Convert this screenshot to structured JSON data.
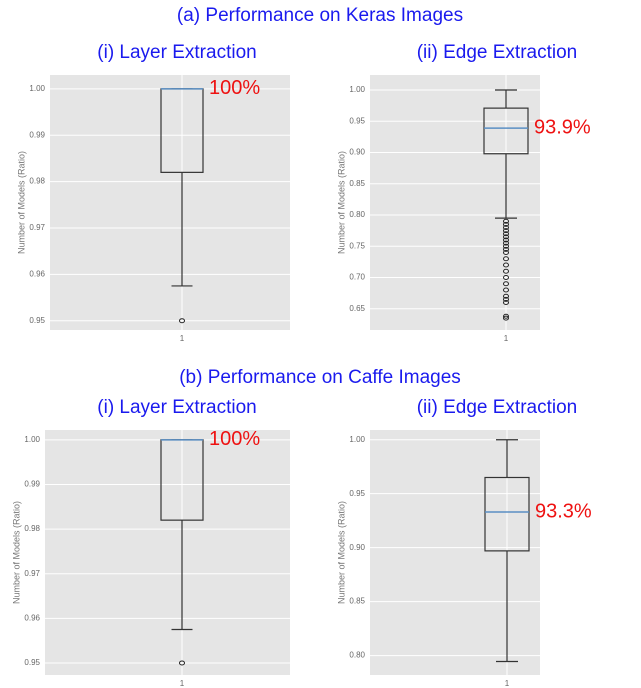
{
  "headings": [
    "(a) Performance on Keras Images",
    "(b) Performance on Caffe Images"
  ],
  "chart_data": [
    {
      "type": "box",
      "title": "(i) Layer Extraction",
      "ylabel": "Number of Models (Ratio)",
      "categories": [
        "1"
      ],
      "ylim": [
        0.948,
        1.003
      ],
      "yticks": [
        0.95,
        0.96,
        0.97,
        0.98,
        0.99,
        {
          "value": 1,
          "label": "1.00"
        }
      ],
      "grid": true,
      "box_color": "#333333",
      "median_color": "#5b8fc4",
      "box": {
        "whislo": 0.9575,
        "q1": 0.982,
        "med": 1,
        "q3": 1,
        "whishi": 1,
        "fliers": [
          0.95
        ]
      },
      "annotation": "100%"
    },
    {
      "type": "box",
      "title": "(ii) Edge Extraction",
      "ylabel": "Number of Models (Ratio)",
      "categories": [
        "1"
      ],
      "ylim": [
        0.616,
        1.024
      ],
      "yticks": [
        0.65,
        {
          "value": 0.7,
          "label": "0.70"
        },
        0.75,
        {
          "value": 0.8,
          "label": "0.80"
        },
        0.85,
        {
          "value": 0.9,
          "label": "0.90"
        },
        0.95,
        {
          "value": 1,
          "label": "1.00"
        }
      ],
      "grid": true,
      "box_color": "#333333",
      "median_color": "#5b8fc4",
      "box": {
        "whislo": 0.795,
        "q1": 0.898,
        "med": 0.939,
        "q3": 0.971,
        "whishi": 1,
        "fliers": [
          0.79,
          0.785,
          0.78,
          0.775,
          0.77,
          0.765,
          0.76,
          0.755,
          0.75,
          0.745,
          0.74,
          0.73,
          0.72,
          0.71,
          0.7,
          0.69,
          0.68,
          0.67,
          0.665,
          0.66,
          0.638,
          0.635
        ]
      },
      "annotation": "93.9%"
    },
    {
      "type": "box",
      "title": "(i) Layer Extraction",
      "ylabel": "Number of Models (Ratio)",
      "categories": [
        "1"
      ],
      "ylim": [
        0.9473,
        1.0022
      ],
      "yticks": [
        0.95,
        0.96,
        0.97,
        0.98,
        0.99,
        {
          "value": 1,
          "label": "1.00"
        }
      ],
      "grid": true,
      "box_color": "#333333",
      "median_color": "#5b8fc4",
      "box": {
        "whislo": 0.9575,
        "q1": 0.982,
        "med": 1,
        "q3": 1,
        "whishi": 1,
        "fliers": [
          0.95
        ]
      },
      "annotation": "100%"
    },
    {
      "type": "box",
      "title": "(ii) Edge Extraction",
      "ylabel": "Number of Models (Ratio)",
      "categories": [
        "1"
      ],
      "ylim": [
        0.782,
        1.009
      ],
      "yticks": [
        {
          "value": 0.8,
          "label": "0.80"
        },
        0.85,
        {
          "value": 0.9,
          "label": "0.90"
        },
        0.95,
        {
          "value": 1,
          "label": "1.00"
        }
      ],
      "grid": true,
      "box_color": "#333333",
      "median_color": "#5b8fc4",
      "box": {
        "whislo": 0.7945,
        "q1": 0.897,
        "med": 0.933,
        "q3": 0.965,
        "whishi": 1,
        "fliers": []
      },
      "annotation": "93.3%"
    }
  ]
}
